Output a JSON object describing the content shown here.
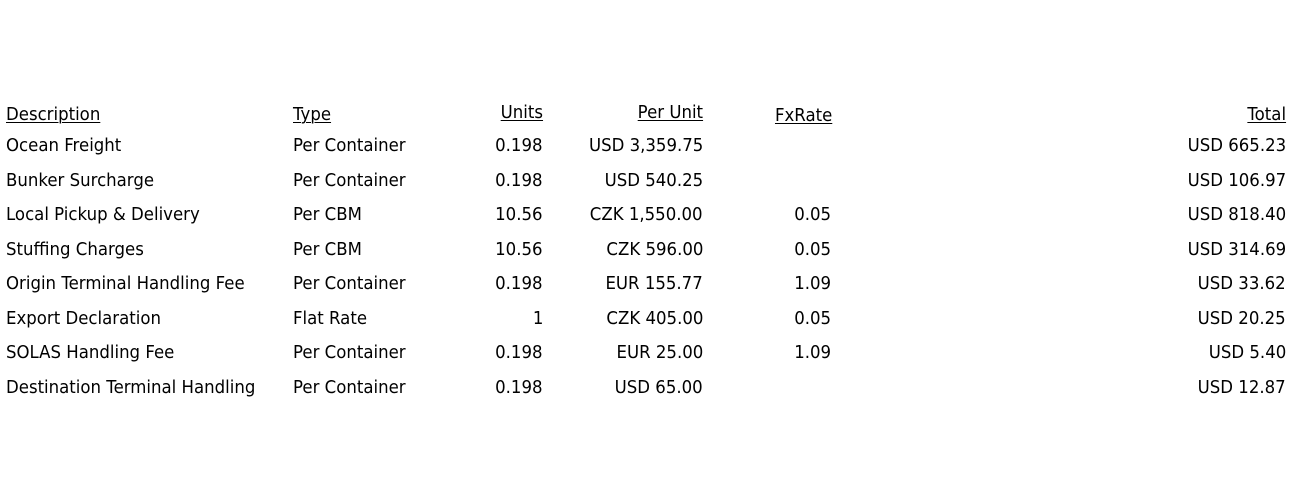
{
  "columns": {
    "description": "Description",
    "type": "Type",
    "units": "Units",
    "per_unit": "Per Unit",
    "fx_rate": "FxRate",
    "total": "Total"
  },
  "rows": [
    {
      "description": "Ocean Freight",
      "type": "Per Container",
      "units": "0.198",
      "per_unit": "USD 3,359.75",
      "fx_rate": "",
      "total": "USD 665.23"
    },
    {
      "description": "Bunker Surcharge",
      "type": "Per Container",
      "units": "0.198",
      "per_unit": "USD 540.25",
      "fx_rate": "",
      "total": "USD 106.97"
    },
    {
      "description": "Local Pickup & Delivery",
      "type": "Per CBM",
      "units": "10.56",
      "per_unit": "CZK 1,550.00",
      "fx_rate": "0.05",
      "total": "USD 818.40"
    },
    {
      "description": "Stuffing Charges",
      "type": "Per CBM",
      "units": "10.56",
      "per_unit": "CZK 596.00",
      "fx_rate": "0.05",
      "total": "USD 314.69"
    },
    {
      "description": "Origin Terminal Handling Fee",
      "type": "Per Container",
      "units": "0.198",
      "per_unit": "EUR 155.77",
      "fx_rate": "1.09",
      "total": "USD 33.62"
    },
    {
      "description": "Export Declaration",
      "type": "Flat Rate",
      "units": "1",
      "per_unit": "CZK 405.00",
      "fx_rate": "0.05",
      "total": "USD 20.25"
    },
    {
      "description": "SOLAS Handling Fee",
      "type": "Per Container",
      "units": "0.198",
      "per_unit": "EUR 25.00",
      "fx_rate": "1.09",
      "total": "USD 5.40"
    },
    {
      "description": "Destination Terminal Handling",
      "type": "Per Container",
      "units": "0.198",
      "per_unit": "USD 65.00",
      "fx_rate": "",
      "total": "USD 12.87"
    }
  ]
}
